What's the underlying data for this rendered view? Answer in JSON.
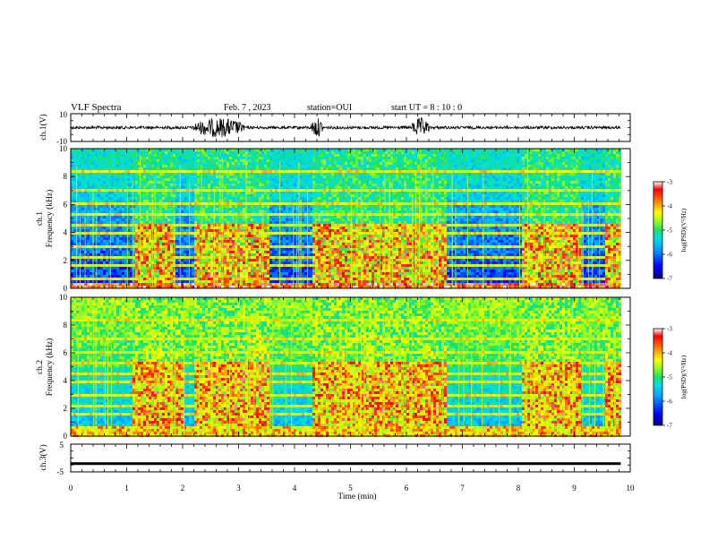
{
  "header": {
    "title": "VLF Spectra",
    "date": "Feb. 7 , 2023",
    "station": "station=OUI",
    "start_ut": "start  UT =  8 : 10 : 0"
  },
  "chart_data": [
    {
      "type": "line",
      "name": "ch1-waveform",
      "ylabel": "ch.1(V)",
      "ylim": [
        -10,
        10
      ],
      "ytick_labels": [
        "-10",
        "10"
      ],
      "baseline": 0,
      "bursts_min": [
        [
          2.2,
          3.1
        ],
        [
          4.3,
          4.5
        ],
        [
          6.1,
          6.4
        ]
      ]
    },
    {
      "type": "heatmap",
      "name": "ch1-spectrogram",
      "ylabel": "ch.1\nFrequency (kHz)",
      "ylim": [
        0,
        10
      ],
      "yticks": [
        0,
        2,
        4,
        6,
        8,
        10
      ],
      "xlim": [
        0,
        10
      ],
      "data_end_min": 9.83,
      "colorbar": {
        "label": "log(PSD)(V²/Hz)",
        "range": [
          -7,
          -3
        ],
        "ticks": [
          "-3",
          "-4",
          "-5",
          "-6",
          "-7"
        ],
        "colors": [
          "#000080",
          "#0000ff",
          "#00a0ff",
          "#00e0e0",
          "#20e060",
          "#a0ff20",
          "#ffff00",
          "#ff8000",
          "#ff0000",
          "#ffffff"
        ]
      },
      "activity_windows_min": [
        [
          1.15,
          1.85
        ],
        [
          2.2,
          3.55
        ],
        [
          4.3,
          6.7
        ],
        [
          8.05,
          9.1
        ],
        [
          9.55,
          9.8
        ]
      ]
    },
    {
      "type": "heatmap",
      "name": "ch2-spectrogram",
      "ylabel": "ch.2\nFrequency (kHz)",
      "ylim": [
        0,
        10
      ],
      "yticks": [
        0,
        2,
        4,
        6,
        8,
        10
      ],
      "xlim": [
        0,
        10
      ],
      "data_end_min": 9.83,
      "colorbar": {
        "label": "log(PSD)(V²/Hz)",
        "range": [
          -7,
          -3
        ],
        "ticks": [
          "-3",
          "-4",
          "-5",
          "-6",
          "-7"
        ]
      },
      "activity_windows_min": [
        [
          1.1,
          2.0
        ],
        [
          2.2,
          3.55
        ],
        [
          4.3,
          6.7
        ],
        [
          8.05,
          9.1
        ],
        [
          9.55,
          9.8
        ]
      ]
    },
    {
      "type": "line",
      "name": "ch3-waveform",
      "ylabel": "ch.3(V)",
      "ylim": [
        -5,
        5
      ],
      "ytick_labels": [
        "-5",
        "5"
      ],
      "level": -2
    }
  ],
  "xaxis": {
    "label": "Time  (min)",
    "ticks": [
      "0",
      "1",
      "2",
      "3",
      "4",
      "5",
      "6",
      "7",
      "8",
      "9",
      "10"
    ]
  }
}
